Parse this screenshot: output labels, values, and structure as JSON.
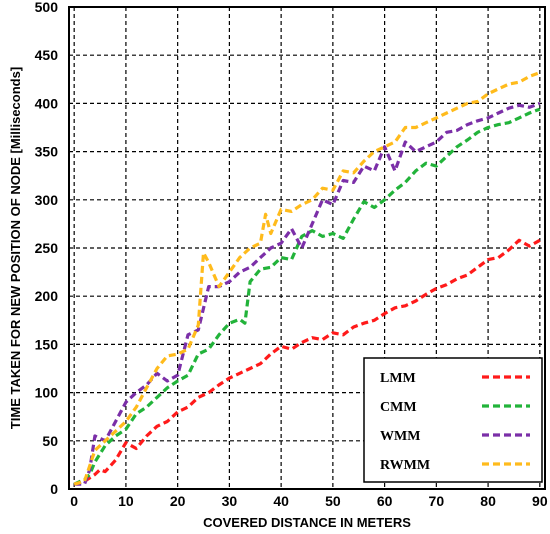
{
  "chart_data": {
    "type": "line",
    "xlabel": "COVERED DISTANCE IN METERS",
    "ylabel": "TIME TAKEN FOR NEW POSITION OF NODE [Milliseconds]",
    "xlim": [
      -1,
      91
    ],
    "ylim": [
      0,
      500
    ],
    "xticks": [
      0,
      10,
      20,
      30,
      40,
      50,
      60,
      70,
      80,
      90
    ],
    "yticks": [
      0,
      50,
      100,
      150,
      200,
      250,
      300,
      350,
      400,
      450,
      500
    ],
    "grid": true,
    "grid_style": "dashed",
    "legend_position": "bottom-right",
    "line_style": "dashed",
    "series": [
      {
        "name": "LMM",
        "color": "#ff1a1a",
        "x": [
          0,
          2,
          4,
          5,
          6,
          8,
          10,
          12,
          14,
          16,
          18,
          20,
          22,
          24,
          26,
          28,
          30,
          32,
          34,
          36,
          38,
          40,
          42,
          44,
          46,
          48,
          50,
          52,
          54,
          56,
          58,
          60,
          62,
          64,
          66,
          68,
          70,
          72,
          74,
          76,
          78,
          80,
          82,
          84,
          86,
          88,
          90
        ],
        "values": [
          5,
          8,
          15,
          20,
          18,
          30,
          48,
          42,
          55,
          65,
          70,
          80,
          85,
          95,
          100,
          108,
          115,
          120,
          125,
          130,
          140,
          148,
          145,
          152,
          157,
          155,
          162,
          160,
          168,
          172,
          175,
          182,
          188,
          190,
          195,
          202,
          208,
          212,
          218,
          222,
          230,
          238,
          240,
          248,
          258,
          252,
          258
        ]
      },
      {
        "name": "CMM",
        "color": "#22b33a",
        "x": [
          0,
          2,
          3,
          4,
          6,
          8,
          10,
          12,
          14,
          16,
          18,
          20,
          22,
          24,
          26,
          28,
          30,
          32,
          33,
          34,
          36,
          38,
          40,
          42,
          44,
          46,
          48,
          50,
          52,
          54,
          56,
          58,
          60,
          62,
          64,
          66,
          68,
          70,
          72,
          74,
          76,
          78,
          80,
          82,
          84,
          86,
          88,
          90
        ],
        "values": [
          5,
          10,
          15,
          28,
          45,
          55,
          62,
          78,
          85,
          95,
          105,
          112,
          118,
          140,
          145,
          160,
          172,
          176,
          172,
          215,
          228,
          230,
          240,
          238,
          262,
          268,
          262,
          265,
          260,
          280,
          298,
          292,
          300,
          310,
          318,
          330,
          338,
          335,
          345,
          355,
          362,
          370,
          375,
          378,
          380,
          385,
          390,
          394
        ]
      },
      {
        "name": "WMM",
        "color": "#7b2fa8",
        "x": [
          0,
          2,
          3,
          4,
          6,
          8,
          10,
          12,
          14,
          16,
          18,
          20,
          22,
          24,
          26,
          28,
          30,
          32,
          34,
          36,
          38,
          40,
          42,
          44,
          46,
          48,
          50,
          52,
          54,
          56,
          58,
          60,
          62,
          64,
          66,
          68,
          70,
          72,
          74,
          76,
          78,
          80,
          82,
          84,
          86,
          88,
          90
        ],
        "values": [
          5,
          5,
          20,
          55,
          50,
          70,
          90,
          100,
          108,
          120,
          112,
          118,
          160,
          165,
          210,
          210,
          215,
          225,
          230,
          240,
          250,
          255,
          270,
          250,
          275,
          300,
          295,
          320,
          318,
          335,
          330,
          355,
          330,
          360,
          350,
          355,
          360,
          370,
          372,
          378,
          382,
          385,
          390,
          395,
          398,
          396,
          400
        ]
      },
      {
        "name": "RWMM",
        "color": "#ffbb1c",
        "x": [
          0,
          2,
          4,
          6,
          8,
          10,
          12,
          14,
          16,
          18,
          20,
          22,
          24,
          25,
          26,
          28,
          30,
          32,
          34,
          36,
          37,
          38,
          40,
          42,
          44,
          46,
          48,
          50,
          52,
          54,
          56,
          58,
          60,
          62,
          64,
          66,
          68,
          70,
          72,
          74,
          76,
          78,
          80,
          82,
          84,
          86,
          88,
          90
        ],
        "values": [
          5,
          8,
          40,
          50,
          60,
          70,
          85,
          105,
          125,
          138,
          140,
          145,
          170,
          245,
          235,
          210,
          225,
          240,
          250,
          255,
          285,
          265,
          290,
          288,
          295,
          300,
          312,
          310,
          330,
          328,
          340,
          350,
          355,
          360,
          375,
          375,
          380,
          385,
          390,
          395,
          400,
          402,
          410,
          415,
          420,
          422,
          428,
          432
        ]
      }
    ]
  }
}
